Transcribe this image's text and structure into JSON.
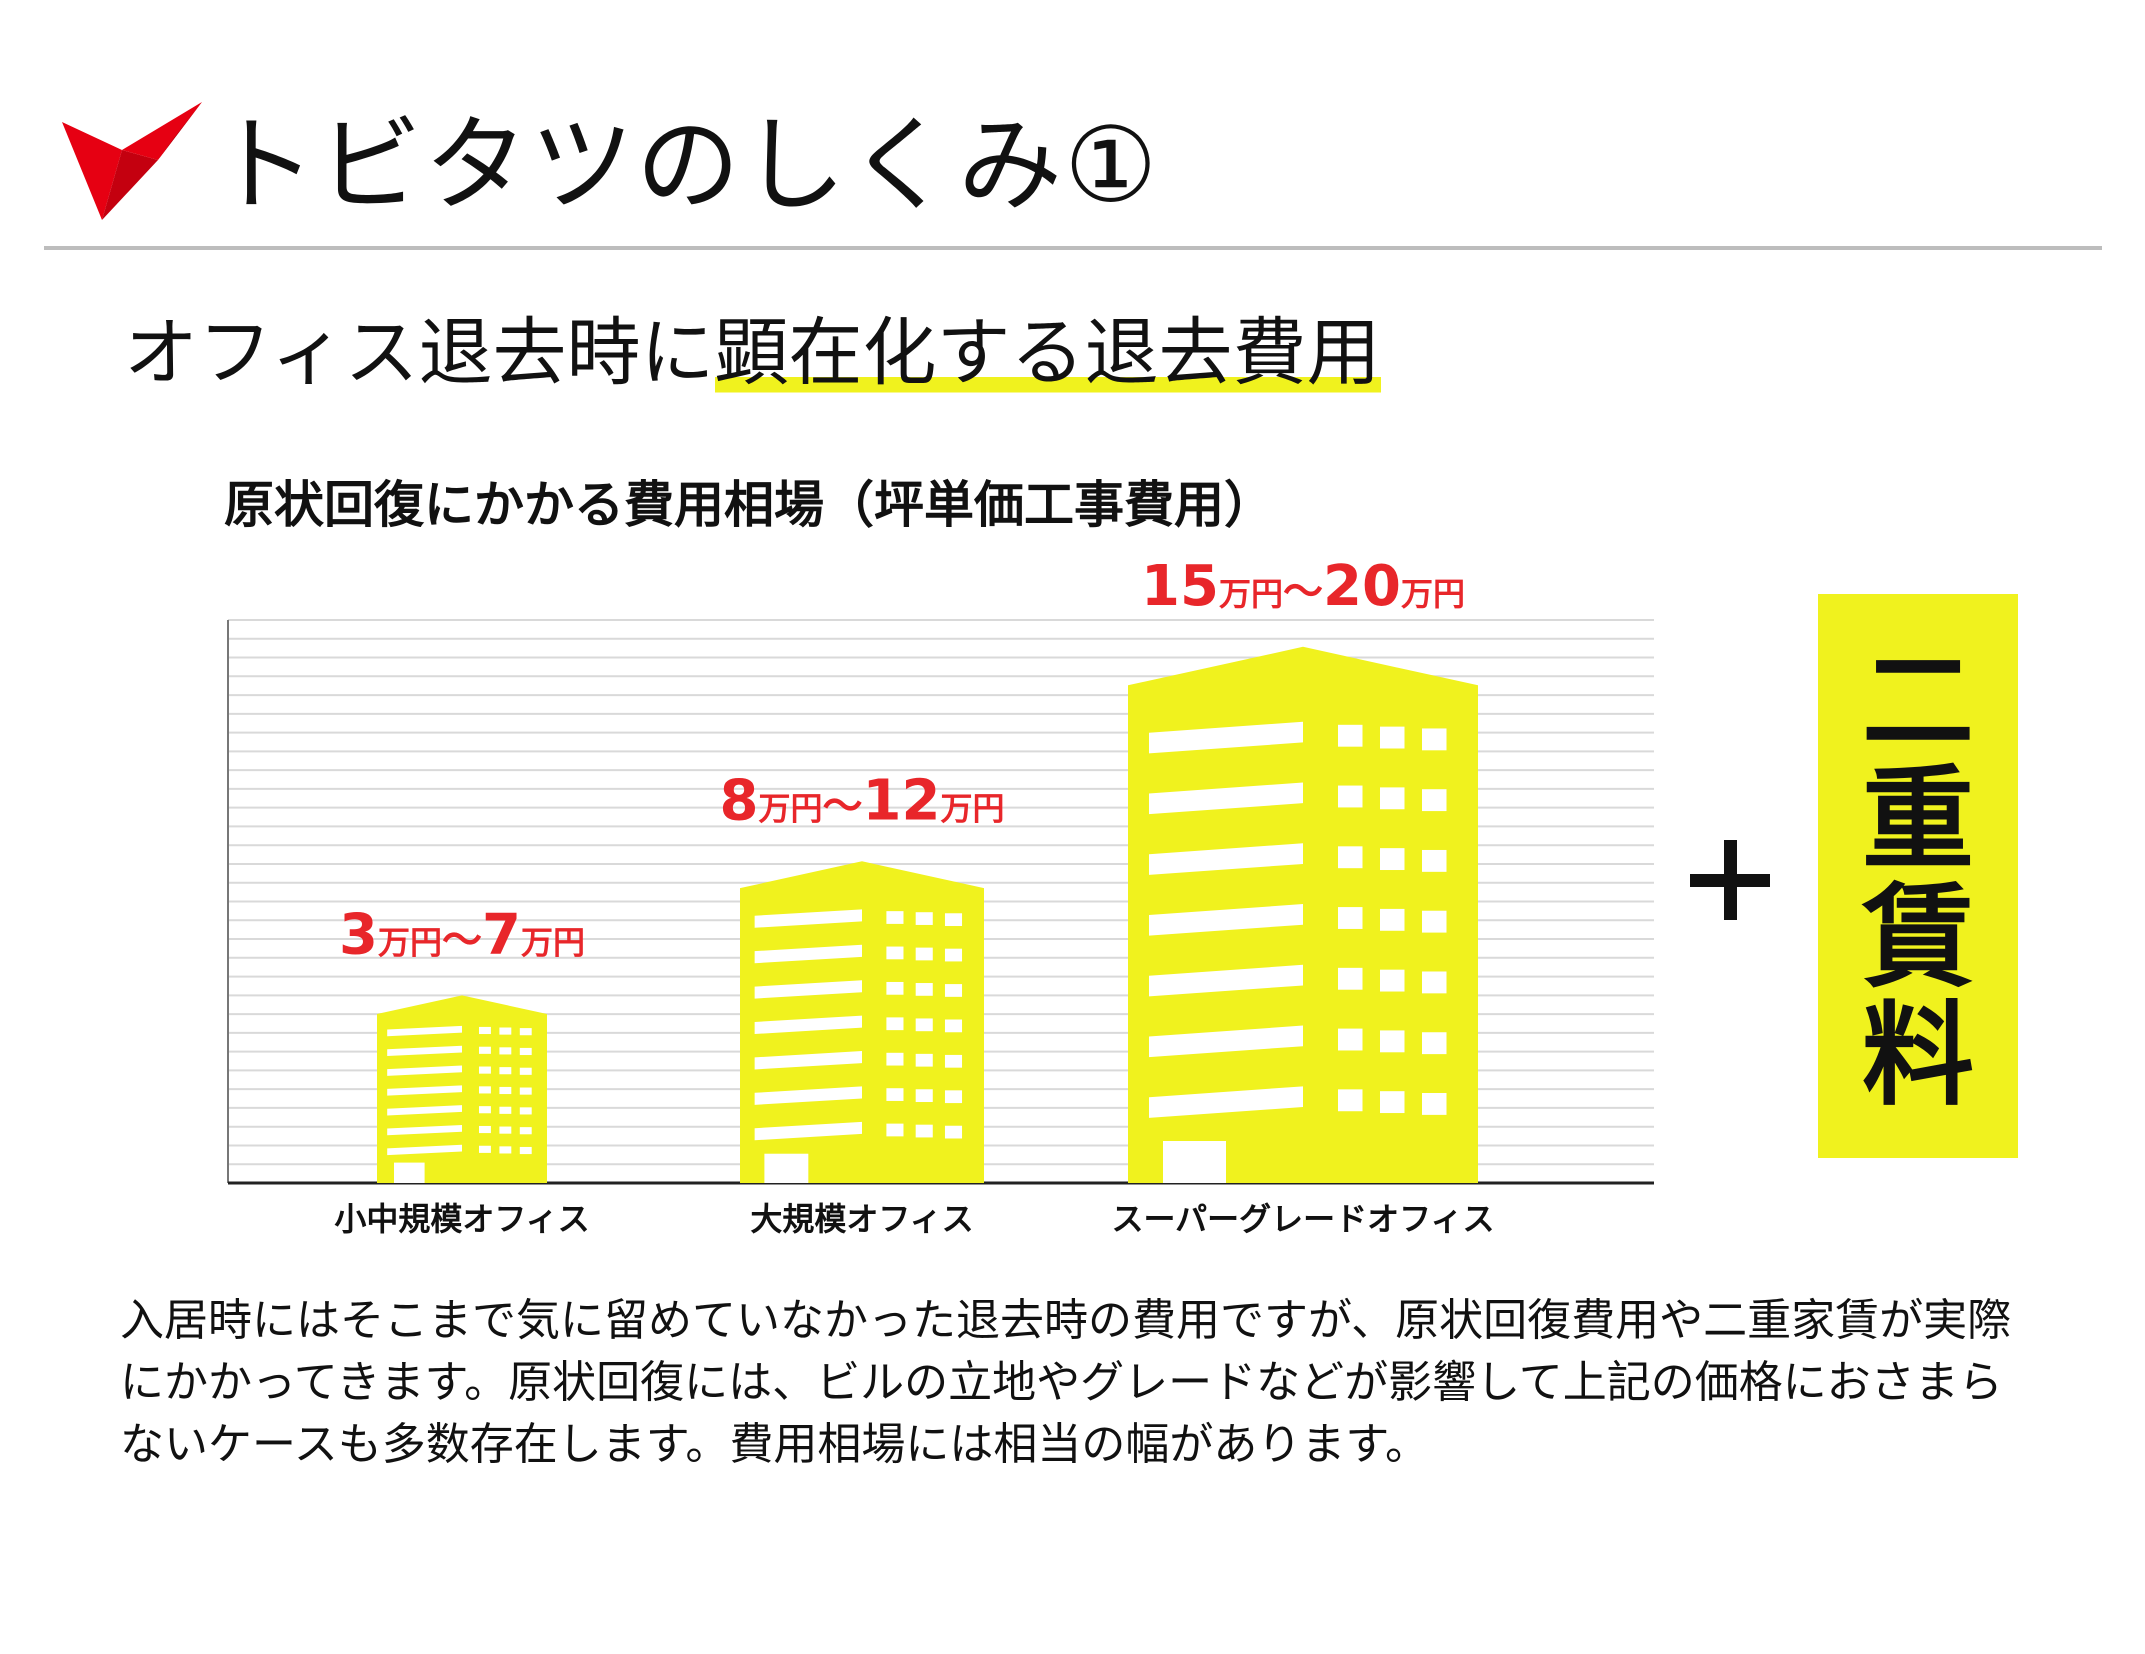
{
  "header": {
    "title": "トビタツのしくみ①",
    "logo_icon": "red-paper-crane-icon"
  },
  "subtitle": {
    "prefix": "オフィス退去時に",
    "highlight": "顕在化する退去費用"
  },
  "chart_title": "原状回復にかかる費用相場（坪単価工事費用）",
  "colors": {
    "accent": "#f0f21e",
    "price_red": "#e8262a",
    "logo_red": "#e60012",
    "rule_gray": "#bdbdbd"
  },
  "chart_data": {
    "type": "bar",
    "categories": [
      "小中規模オフィス",
      "大規模オフィス",
      "スーパーグレードオフィス"
    ],
    "series": [
      {
        "values_range_man_yen": [
          [
            3,
            7
          ],
          [
            8,
            12
          ],
          [
            15,
            20
          ]
        ],
        "labels": [
          {
            "from": "3",
            "from_unit": "万円",
            "sep": "〜",
            "to": "7",
            "to_unit": "万円"
          },
          {
            "from": "8",
            "from_unit": "万円",
            "sep": "〜",
            "to": "12",
            "to_unit": "万円"
          },
          {
            "from": "15",
            "from_unit": "万円",
            "sep": "〜",
            "to": "20",
            "to_unit": "万円"
          }
        ]
      }
    ],
    "ylim": [
      0,
      21
    ],
    "grid": true,
    "mark_style": "building-icons"
  },
  "plus_icon": "plus-icon",
  "double_rent": {
    "chars": [
      "二",
      "重",
      "賃",
      "料"
    ]
  },
  "body_text": {
    "lines": [
      "入居時にはそこまで気に留めていなかった退去時の費用ですが、原状回復費用や二重家賃が実際",
      "にかかってきます。原状回復には、ビルの立地やグレードなどが影響して上記の価格におさまら",
      "ないケースも多数存在します。費用相場には相当の幅があります。"
    ]
  }
}
